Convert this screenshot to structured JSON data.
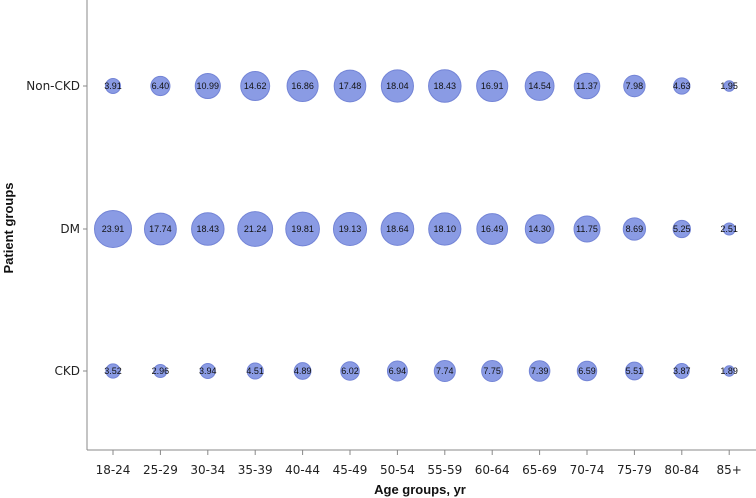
{
  "chart_data": {
    "type": "scatter",
    "title": "",
    "xlabel": "Age groups, yr",
    "ylabel": "Patient groups",
    "categories": [
      "18-24",
      "25-29",
      "30-34",
      "35-39",
      "40-44",
      "45-49",
      "50-54",
      "55-59",
      "60-64",
      "65-69",
      "70-74",
      "75-79",
      "80-84",
      "85+"
    ],
    "groups": [
      "Non-CKD",
      "DM",
      "CKD"
    ],
    "series": [
      {
        "name": "Non-CKD",
        "values": [
          3.91,
          6.4,
          10.99,
          14.62,
          16.86,
          17.48,
          18.04,
          18.43,
          16.91,
          14.54,
          11.37,
          7.98,
          4.63,
          1.95
        ]
      },
      {
        "name": "DM",
        "values": [
          23.91,
          17.74,
          18.43,
          21.24,
          19.81,
          19.13,
          18.64,
          18.1,
          16.49,
          14.3,
          11.75,
          8.69,
          5.25,
          2.51
        ]
      },
      {
        "name": "CKD",
        "values": [
          3.52,
          2.96,
          3.94,
          4.51,
          4.89,
          6.02,
          6.94,
          7.74,
          7.75,
          7.39,
          6.59,
          5.51,
          3.87,
          1.89
        ]
      }
    ],
    "labels": [
      [
        "3.91",
        "6.40",
        "10.99",
        "14.62",
        "16.86",
        "17.48",
        "18.04",
        "18.43",
        "16.91",
        "14.54",
        "11.37",
        "7.98",
        "4.63",
        "1.95"
      ],
      [
        "23.91",
        "17.74",
        "18.43",
        "21.24",
        "19.81",
        "19.13",
        "18.64",
        "18.10",
        "16.49",
        "14.30",
        "11.75",
        "8.69",
        "5.25",
        "2.51"
      ],
      [
        "3.52",
        "2.96",
        "3.94",
        "4.51",
        "4.89",
        "6.02",
        "6.94",
        "7.74",
        "7.75",
        "7.39",
        "6.59",
        "5.51",
        "3.87",
        "1.89"
      ]
    ],
    "bubble_color": "#8a9be4",
    "bubble_stroke": "#7384d6",
    "grid": false,
    "legend": "none"
  }
}
